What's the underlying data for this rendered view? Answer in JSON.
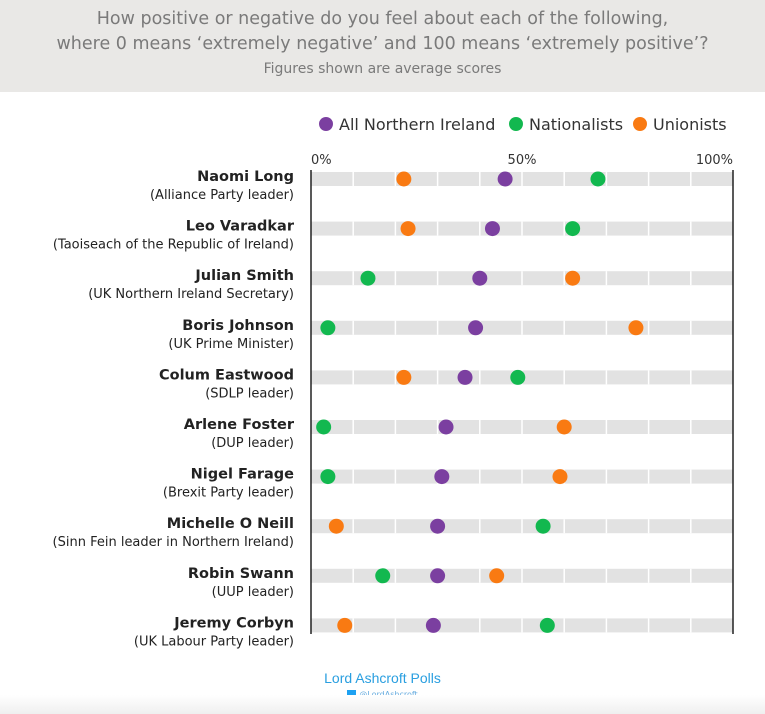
{
  "header": {
    "title_line1": "How positive or negative do you feel about each of the following,",
    "title_line2": "where 0 means ‘extremely negative’ and 100 means ‘extremely positive’?",
    "subtitle": "Figures shown are average scores"
  },
  "footer": {
    "brand": "Lord Ashcroft Polls",
    "twitter": "@LordAshcroft"
  },
  "chart_data": {
    "type": "scatter",
    "title": "How positive or negative do you feel about each of the following, where 0 means ‘extremely negative’ and 100 means ‘extremely positive’?",
    "subtitle": "Figures shown are average scores",
    "xlim": [
      0,
      100
    ],
    "ticks": [
      "0%",
      "50%",
      "100%"
    ],
    "tick_values": [
      0,
      50,
      100
    ],
    "legend_position": "top-right",
    "categories": [
      {
        "name": "Naomi Long",
        "role": "(Alliance Party leader)"
      },
      {
        "name": "Leo Varadkar",
        "role": "(Taoiseach of the Republic of Ireland)"
      },
      {
        "name": "Julian Smith",
        "role": "(UK Northern Ireland Secretary)"
      },
      {
        "name": "Boris Johnson",
        "role": "(UK Prime Minister)"
      },
      {
        "name": "Colum Eastwood",
        "role": "(SDLP leader)"
      },
      {
        "name": "Arlene Foster",
        "role": "(DUP leader)"
      },
      {
        "name": "Nigel Farage",
        "role": "(Brexit Party leader)"
      },
      {
        "name": "Michelle O Neill",
        "role": "(Sinn Fein leader in Northern Ireland)"
      },
      {
        "name": "Robin Swann",
        "role": "(UUP leader)"
      },
      {
        "name": "Jeremy Corbyn",
        "role": "(UK Labour Party leader)"
      }
    ],
    "series": [
      {
        "name": "All Northern Ireland",
        "color": "#7b3fa0",
        "values": [
          46,
          43,
          40,
          39,
          36.5,
          32,
          31,
          30,
          30,
          29
        ]
      },
      {
        "name": "Nationalists",
        "color": "#12b84f",
        "values": [
          68,
          62,
          13.5,
          4,
          49,
          3,
          4,
          55,
          17,
          56
        ]
      },
      {
        "name": "Unionists",
        "color": "#f97a12",
        "values": [
          22,
          23,
          62,
          77,
          22,
          60,
          59,
          6,
          44,
          8
        ]
      }
    ]
  }
}
